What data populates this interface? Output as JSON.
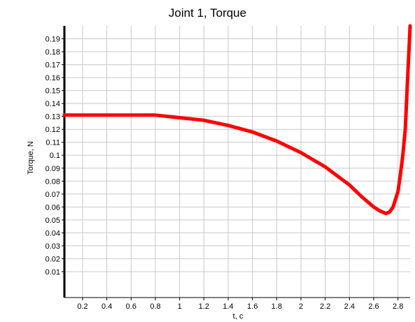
{
  "chart_data": {
    "type": "line",
    "title": "Joint 1, Torque",
    "xlabel": "t, c",
    "ylabel": "Torque, N",
    "xlim": [
      0.05,
      2.9
    ],
    "ylim": [
      -0.01,
      0.2
    ],
    "grid": true,
    "legend": "none",
    "x_ticks": [
      "0.2",
      "0.4",
      "0.6",
      "0.8",
      "1",
      "1.2",
      "1.4",
      "1.6",
      "1.8",
      "2",
      "2.2",
      "2.4",
      "2.6",
      "2.8"
    ],
    "y_ticks": [
      "0.01",
      "0.02",
      "0.03",
      "0.04",
      "0.05",
      "0.06",
      "0.07",
      "0.08",
      "0.09",
      "0.1",
      "0.11",
      "0.12",
      "0.13",
      "0.14",
      "0.15",
      "0.16",
      "0.17",
      "0.18",
      "0.19"
    ],
    "series": [
      {
        "color": "#ff0000",
        "x": [
          0.05,
          0.2,
          0.4,
          0.6,
          0.8,
          1.0,
          1.2,
          1.4,
          1.6,
          1.8,
          2.0,
          2.2,
          2.4,
          2.5,
          2.6,
          2.65,
          2.7,
          2.73,
          2.76,
          2.8,
          2.82,
          2.84,
          2.86,
          2.87,
          2.88,
          2.89,
          2.9
        ],
        "y": [
          0.131,
          0.131,
          0.131,
          0.131,
          0.131,
          0.129,
          0.127,
          0.123,
          0.118,
          0.111,
          0.102,
          0.091,
          0.077,
          0.068,
          0.06,
          0.057,
          0.055,
          0.056,
          0.06,
          0.072,
          0.085,
          0.1,
          0.12,
          0.14,
          0.16,
          0.18,
          0.2
        ]
      }
    ]
  }
}
